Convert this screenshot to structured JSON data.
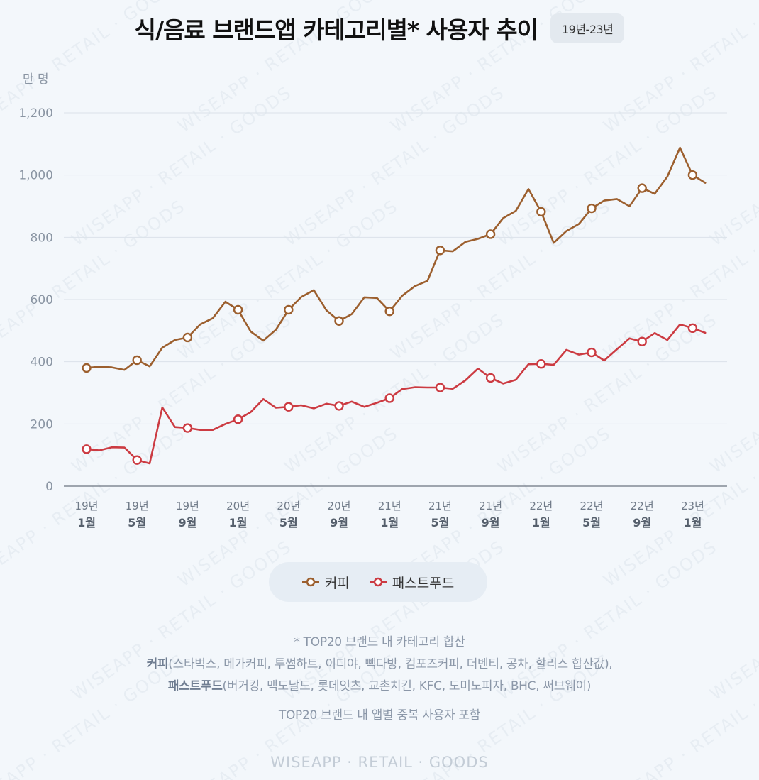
{
  "header": {
    "title": "식/음료 브랜드앱 카테고리별* 사용자 추이",
    "period_badge": "19년-23년"
  },
  "chart_data": {
    "type": "line",
    "unit_label": "만 명",
    "ylim": [
      0,
      1200
    ],
    "yticks": [
      0,
      200,
      400,
      600,
      800,
      1000,
      1200
    ],
    "ytick_labels": [
      "0",
      "200",
      "400",
      "600",
      "800",
      "1,000",
      "1,200"
    ],
    "grid": true,
    "legend_position": "bottom-center",
    "x_tick_labels": [
      {
        "index": 0,
        "year": "19년",
        "month": "1월"
      },
      {
        "index": 4,
        "year": "19년",
        "month": "5월"
      },
      {
        "index": 8,
        "year": "19년",
        "month": "9월"
      },
      {
        "index": 12,
        "year": "20년",
        "month": "1월"
      },
      {
        "index": 16,
        "year": "20년",
        "month": "5월"
      },
      {
        "index": 20,
        "year": "20년",
        "month": "9월"
      },
      {
        "index": 24,
        "year": "21년",
        "month": "1월"
      },
      {
        "index": 28,
        "year": "21년",
        "month": "5월"
      },
      {
        "index": 32,
        "year": "21년",
        "month": "9월"
      },
      {
        "index": 36,
        "year": "22년",
        "month": "1월"
      },
      {
        "index": 40,
        "year": "22년",
        "month": "5월"
      },
      {
        "index": 44,
        "year": "22년",
        "month": "9월"
      },
      {
        "index": 48,
        "year": "23년",
        "month": "1월"
      }
    ],
    "marker_every": 4,
    "series": [
      {
        "name": "커피",
        "color": "#9c5f2e",
        "values": [
          380,
          384,
          382,
          374,
          405,
          385,
          445,
          470,
          478,
          520,
          540,
          593,
          567,
          497,
          468,
          503,
          567,
          608,
          630,
          565,
          531,
          553,
          607,
          605,
          562,
          612,
          643,
          660,
          758,
          755,
          785,
          795,
          810,
          862,
          885,
          955,
          882,
          782,
          820,
          843,
          893,
          918,
          923,
          900,
          958,
          940,
          995,
          1088,
          1000,
          975
        ]
      },
      {
        "name": "패스트푸드",
        "color": "#cc3b42",
        "values": [
          119,
          115,
          125,
          124,
          84,
          73,
          253,
          190,
          187,
          181,
          181,
          200,
          215,
          238,
          280,
          252,
          255,
          260,
          250,
          265,
          258,
          272,
          255,
          268,
          283,
          312,
          318,
          317,
          317,
          313,
          340,
          378,
          348,
          330,
          342,
          392,
          393,
          390,
          438,
          423,
          430,
          404,
          440,
          475,
          465,
          492,
          470,
          520,
          508,
          493
        ]
      }
    ]
  },
  "legend": {
    "items": [
      {
        "label": "커피",
        "color": "#9c5f2e"
      },
      {
        "label": "패스트푸드",
        "color": "#cc3b42"
      }
    ]
  },
  "notes": {
    "line1": "* TOP20 브랜드 내 카테고리 합산",
    "coffee_label": "커피",
    "coffee_list": "(스타벅스, 메가커피, 투썸하트, 이디야, 빽다방, 컴포즈커피, 더벤티, 공차, 할리스 합산값),",
    "fastfood_label": "패스트푸드",
    "fastfood_list": "(버거킹, 맥도날드, 롯데잇츠, 교촌치킨, KFC, 도미노피자, BHC, 써브웨이)",
    "line4": "TOP20 브랜드 내 앱별 중복 사용자 포함"
  },
  "footer": {
    "brand": "WISEAPP · RETAIL · GOODS"
  }
}
